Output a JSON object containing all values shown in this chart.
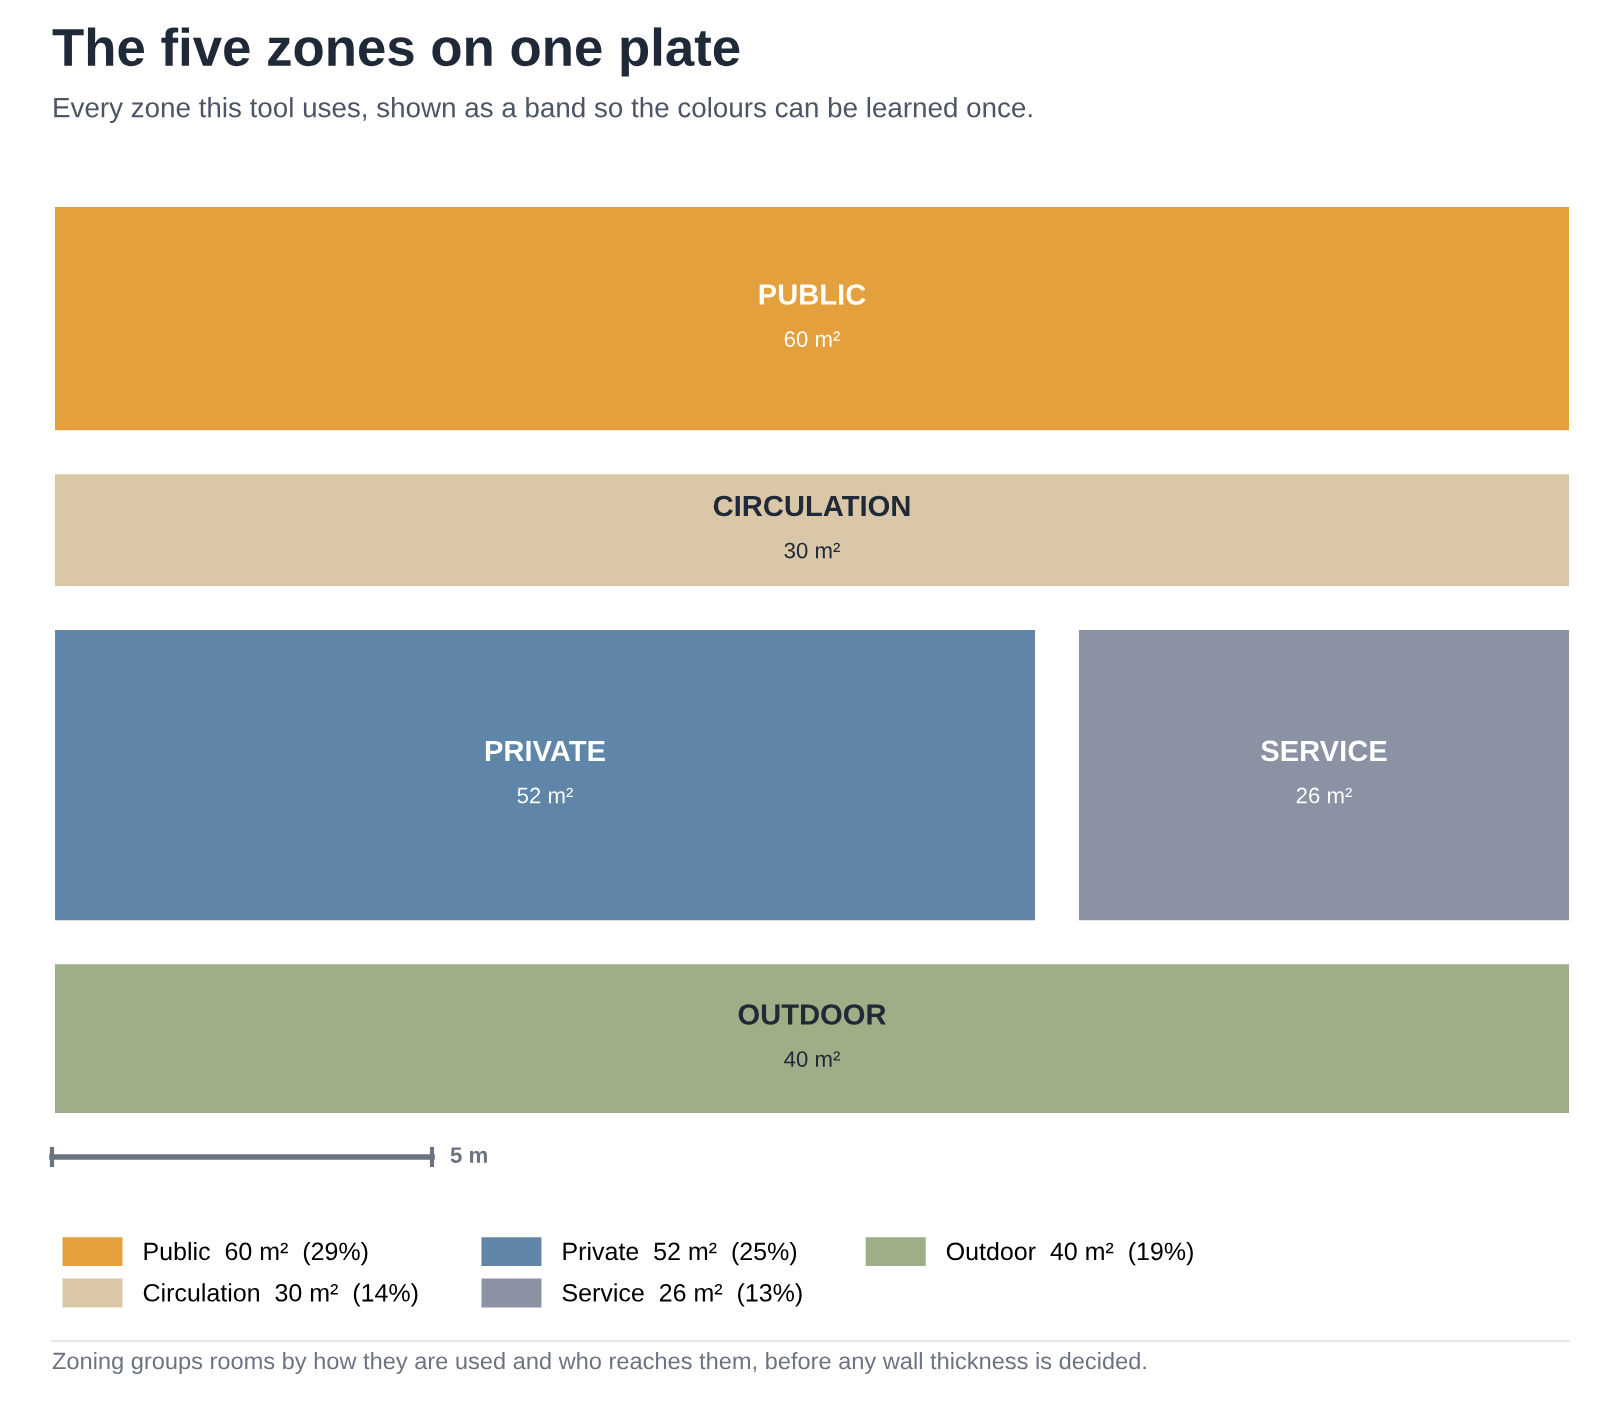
{
  "chart_data": {
    "type": "other",
    "title": "The five zones on one plate",
    "subtitle": "Every zone this tool uses, shown as a band so the colours can be learned once.",
    "categories": [
      "PUBLIC",
      "CIRCULATION",
      "PRIVATE",
      "SERVICE",
      "OUTDOOR"
    ],
    "series": [
      {
        "name": "Public  60 m²  (29%)",
        "color": "#e3a03c",
        "values": [
          60,
          null,
          null,
          null,
          null
        ],
        "value_labels": [
          "60 m²",
          null,
          null,
          null,
          null
        ]
      },
      {
        "name": "Circulation  30 m²  (14%)",
        "color": "#dac7a7",
        "values": [
          null,
          30,
          null,
          null,
          null
        ],
        "value_labels": [
          null,
          "30 m²",
          null,
          null,
          null
        ]
      },
      {
        "name": "Private  52 m²  (25%)",
        "color": "#5f86a8",
        "values": [
          null,
          null,
          52,
          null,
          null
        ],
        "value_labels": [
          null,
          null,
          "52 m²",
          null,
          null
        ]
      },
      {
        "name": "Service  26 m²  (13%)",
        "color": "#8b92a4",
        "values": [
          null,
          null,
          null,
          26,
          null
        ],
        "value_labels": [
          null,
          null,
          null,
          "26 m²",
          null
        ]
      },
      {
        "name": "Outdoor  40 m²  (19%)",
        "color": "#9eaf87",
        "values": [
          null,
          null,
          null,
          null,
          40
        ],
        "value_labels": [
          null,
          null,
          null,
          null,
          "40 m²"
        ]
      }
    ],
    "legend": "bottom",
    "annotations": [
      "5 m",
      "Zoning groups rooms by how they are used and who reaches them, before any wall thickness is decided."
    ]
  }
}
